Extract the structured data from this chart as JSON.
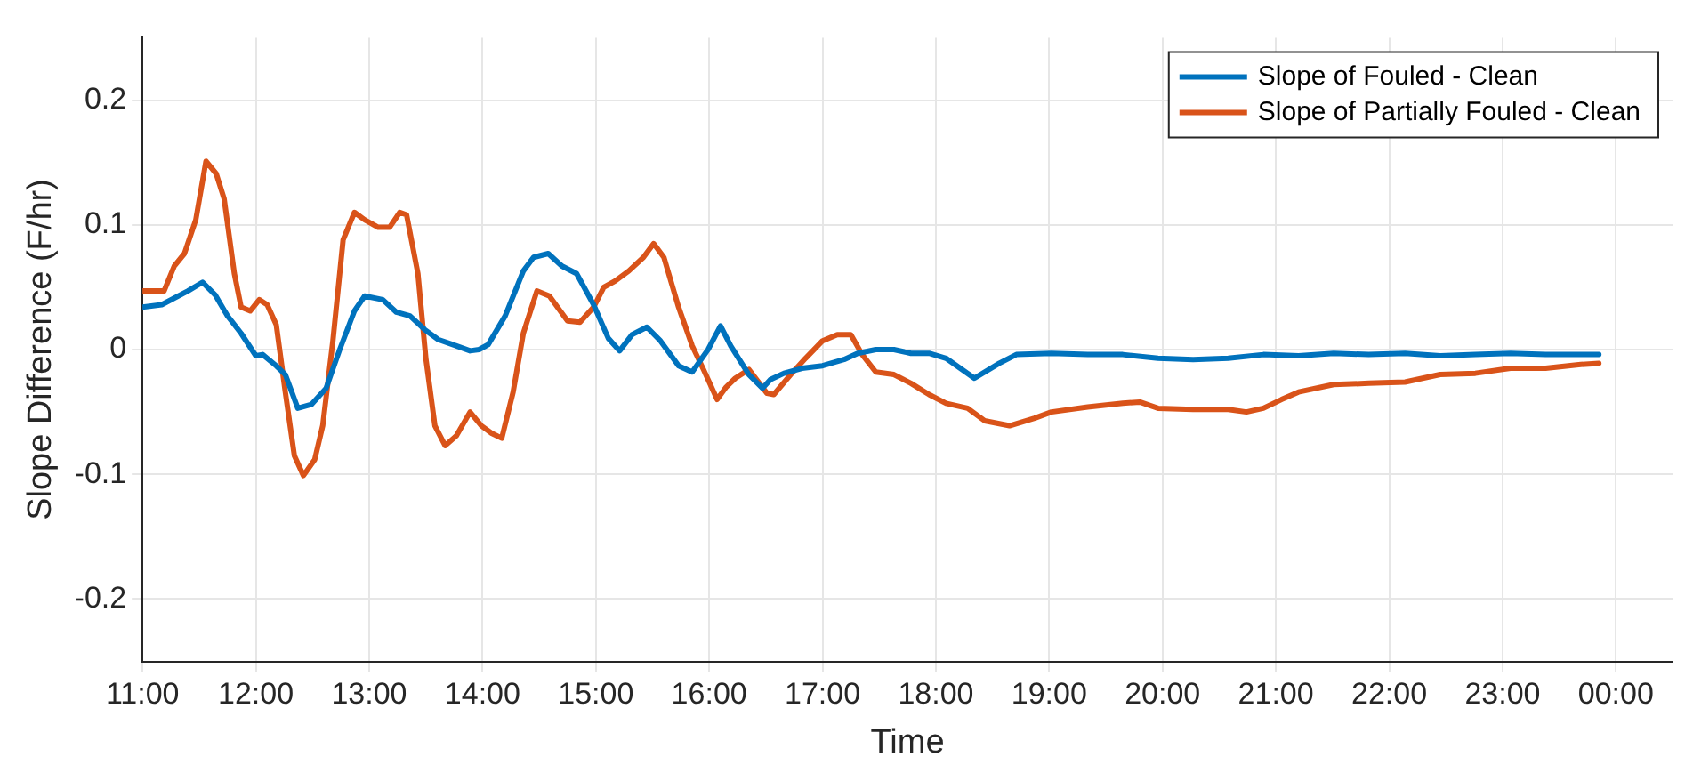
{
  "chart_data": {
    "type": "line",
    "xlabel": "Time",
    "ylabel": "Slope Difference (F/hr)",
    "xlim": [
      11,
      24.5
    ],
    "ylim": [
      -0.25,
      0.25
    ],
    "xticks": [
      {
        "value": 11,
        "label": "11:00"
      },
      {
        "value": 12,
        "label": "12:00"
      },
      {
        "value": 13,
        "label": "13:00"
      },
      {
        "value": 14,
        "label": "14:00"
      },
      {
        "value": 15,
        "label": "15:00"
      },
      {
        "value": 16,
        "label": "16:00"
      },
      {
        "value": 17,
        "label": "17:00"
      },
      {
        "value": 18,
        "label": "18:00"
      },
      {
        "value": 19,
        "label": "19:00"
      },
      {
        "value": 20,
        "label": "20:00"
      },
      {
        "value": 21,
        "label": "21:00"
      },
      {
        "value": 22,
        "label": "22:00"
      },
      {
        "value": 23,
        "label": "23:00"
      },
      {
        "value": 24,
        "label": "00:00"
      }
    ],
    "yticks": [
      -0.2,
      -0.1,
      0,
      0.1,
      0.2
    ],
    "grid": true,
    "legend": "top right",
    "marker": "none",
    "line_style": "solid",
    "series": [
      {
        "name": "Slope of Fouled - Clean",
        "color": "#0072bd",
        "x": [
          11,
          11.17,
          11.4,
          11.53,
          11.64,
          11.75,
          11.87,
          12,
          12.06,
          12.18,
          12.26,
          12.37,
          12.49,
          12.62,
          12.74,
          12.87,
          12.96,
          13.12,
          13.24,
          13.36,
          13.49,
          13.61,
          13.77,
          13.89,
          13.97,
          14.05,
          14.2,
          14.36,
          14.45,
          14.58,
          14.7,
          14.83,
          14.98,
          15.11,
          15.21,
          15.32,
          15.45,
          15.57,
          15.73,
          15.85,
          15.99,
          16.1,
          16.19,
          16.35,
          16.47,
          16.54,
          16.66,
          16.82,
          17,
          17.19,
          17.31,
          17.47,
          17.63,
          17.78,
          17.94,
          18.09,
          18.34,
          18.56,
          18.71,
          19.02,
          19.34,
          19.65,
          19.96,
          20.27,
          20.58,
          20.89,
          21.2,
          21.51,
          21.82,
          22.14,
          22.45,
          22.76,
          23.07,
          23.38,
          23.69,
          23.85
        ],
        "values": [
          0.034,
          0.036,
          0.047,
          0.054,
          0.044,
          0.027,
          0.013,
          -0.005,
          -0.004,
          -0.013,
          -0.02,
          -0.047,
          -0.044,
          -0.031,
          0,
          0.031,
          0.043,
          0.04,
          0.03,
          0.027,
          0.016,
          0.008,
          0.003,
          -0.001,
          0,
          0.004,
          0.027,
          0.063,
          0.074,
          0.077,
          0.067,
          0.061,
          0.036,
          0.009,
          -0.001,
          0.012,
          0.018,
          0.007,
          -0.013,
          -0.018,
          0,
          0.019,
          0.003,
          -0.02,
          -0.031,
          -0.024,
          -0.019,
          -0.015,
          -0.013,
          -0.008,
          -0.003,
          0,
          0,
          -0.003,
          -0.003,
          -0.007,
          -0.023,
          -0.011,
          -0.004,
          -0.003,
          -0.004,
          -0.004,
          -0.007,
          -0.008,
          -0.007,
          -0.004,
          -0.005,
          -0.003,
          -0.004,
          -0.003,
          -0.005,
          -0.004,
          -0.003,
          -0.004,
          -0.004,
          -0.004
        ]
      },
      {
        "name": "Slope of Partially Fouled - Clean",
        "color": "#d95319",
        "x": [
          11,
          11.19,
          11.28,
          11.37,
          11.47,
          11.56,
          11.65,
          11.72,
          11.81,
          11.87,
          11.95,
          12.03,
          12.1,
          12.18,
          12.26,
          12.34,
          12.42,
          12.52,
          12.59,
          12.68,
          12.77,
          12.87,
          12.96,
          13.08,
          13.18,
          13.27,
          13.33,
          13.43,
          13.5,
          13.58,
          13.67,
          13.77,
          13.89,
          13.99,
          14.08,
          14.17,
          14.27,
          14.36,
          14.48,
          14.59,
          14.75,
          14.86,
          14.98,
          15.07,
          15.17,
          15.29,
          15.42,
          15.51,
          15.6,
          15.73,
          15.85,
          15.95,
          16.07,
          16.15,
          16.23,
          16.35,
          16.51,
          16.57,
          16.72,
          16.85,
          17,
          17.13,
          17.25,
          17.35,
          17.47,
          17.63,
          17.78,
          17.94,
          18.09,
          18.28,
          18.43,
          18.65,
          18.87,
          19.02,
          19.34,
          19.65,
          19.8,
          19.96,
          20.27,
          20.58,
          20.74,
          20.89,
          21.05,
          21.2,
          21.51,
          21.82,
          22.14,
          22.45,
          22.76,
          23.07,
          23.38,
          23.69,
          23.85
        ],
        "values": [
          0.047,
          0.047,
          0.067,
          0.077,
          0.104,
          0.151,
          0.141,
          0.121,
          0.061,
          0.034,
          0.031,
          0.04,
          0.036,
          0.02,
          -0.034,
          -0.085,
          -0.101,
          -0.088,
          -0.061,
          0.007,
          0.088,
          0.11,
          0.104,
          0.098,
          0.098,
          0.11,
          0.108,
          0.061,
          -0.007,
          -0.061,
          -0.077,
          -0.069,
          -0.05,
          -0.061,
          -0.067,
          -0.071,
          -0.034,
          0.013,
          0.047,
          0.043,
          0.023,
          0.022,
          0.034,
          0.05,
          0.055,
          0.063,
          0.074,
          0.085,
          0.074,
          0.034,
          0.003,
          -0.016,
          -0.04,
          -0.03,
          -0.023,
          -0.016,
          -0.035,
          -0.036,
          -0.02,
          -0.007,
          0.007,
          0.012,
          0.012,
          -0.004,
          -0.018,
          -0.02,
          -0.027,
          -0.036,
          -0.043,
          -0.047,
          -0.057,
          -0.061,
          -0.055,
          -0.05,
          -0.046,
          -0.043,
          -0.042,
          -0.047,
          -0.048,
          -0.048,
          -0.05,
          -0.047,
          -0.04,
          -0.034,
          -0.028,
          -0.027,
          -0.026,
          -0.02,
          -0.019,
          -0.015,
          -0.015,
          -0.012,
          -0.011
        ]
      }
    ]
  }
}
